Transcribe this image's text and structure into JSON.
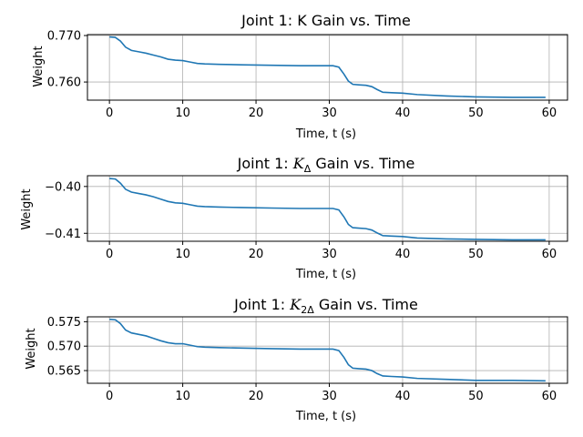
{
  "chart_data": [
    {
      "type": "line",
      "title": "Joint 1: K Gain vs. Time",
      "xlabel": "Time, t (s)",
      "ylabel": "Weight",
      "xlim": [
        -3,
        62.5
      ],
      "ylim": [
        0.7561,
        0.7702
      ],
      "xticks": [
        0,
        10,
        20,
        30,
        40,
        50,
        60
      ],
      "xtick_labels": [
        "0",
        "10",
        "20",
        "30",
        "40",
        "50",
        "60"
      ],
      "yticks": [
        0.76,
        0.77
      ],
      "ytick_labels": [
        "0.760",
        "0.770"
      ],
      "grid": true,
      "series": [
        {
          "color": "#1f77b4",
          "x": [
            0,
            0.8,
            1.5,
            2.2,
            3,
            4,
            5,
            6,
            7,
            8,
            9,
            10,
            11,
            12,
            13,
            15,
            18,
            22,
            26,
            29,
            30.5,
            31.3,
            32,
            32.6,
            33.2,
            34,
            35,
            35.8,
            36.5,
            37.3,
            38.5,
            40,
            42,
            46,
            50,
            55,
            59.5
          ],
          "y": [
            0.7697,
            0.7696,
            0.7688,
            0.7675,
            0.7668,
            0.7665,
            0.7662,
            0.7658,
            0.7654,
            0.7649,
            0.7647,
            0.7646,
            0.7643,
            0.764,
            0.7639,
            0.7638,
            0.7637,
            0.7636,
            0.7635,
            0.7635,
            0.7635,
            0.7632,
            0.7617,
            0.7602,
            0.7595,
            0.7594,
            0.7593,
            0.759,
            0.7584,
            0.7578,
            0.7577,
            0.7576,
            0.7573,
            0.757,
            0.7568,
            0.7567,
            0.7567
          ]
        }
      ]
    },
    {
      "type": "line",
      "title": "Joint 1: ",
      "title_symbol": "K",
      "title_subscript": "Δ",
      "title_suffix": " Gain vs. Time",
      "xlabel": "Time, t (s)",
      "ylabel": "Weight",
      "xlim": [
        -3,
        62.5
      ],
      "ylim": [
        -0.4117,
        -0.3977
      ],
      "xticks": [
        0,
        10,
        20,
        30,
        40,
        50,
        60
      ],
      "xtick_labels": [
        "0",
        "10",
        "20",
        "30",
        "40",
        "50",
        "60"
      ],
      "yticks": [
        -0.4,
        -0.41
      ],
      "ytick_labels": [
        "−0.40",
        "−0.41"
      ],
      "grid": true,
      "series": [
        {
          "color": "#1f77b4",
          "x": [
            0,
            0.8,
            1.5,
            2.2,
            3,
            4,
            5,
            6,
            7,
            8,
            9,
            10,
            11,
            12,
            13,
            15,
            18,
            22,
            26,
            29,
            30.5,
            31.3,
            32,
            32.6,
            33.2,
            34,
            35,
            35.8,
            36.5,
            37.3,
            38.5,
            40,
            42,
            46,
            50,
            55,
            59.5
          ],
          "y": [
            -0.3983,
            -0.3984,
            -0.3993,
            -0.4006,
            -0.4012,
            -0.4015,
            -0.4018,
            -0.4022,
            -0.4027,
            -0.4032,
            -0.4035,
            -0.4036,
            -0.4039,
            -0.4042,
            -0.4043,
            -0.4044,
            -0.4045,
            -0.4046,
            -0.4047,
            -0.4047,
            -0.4047,
            -0.405,
            -0.4065,
            -0.4081,
            -0.4088,
            -0.4089,
            -0.409,
            -0.4093,
            -0.4099,
            -0.4105,
            -0.4106,
            -0.4107,
            -0.411,
            -0.4112,
            -0.4113,
            -0.4114,
            -0.4114
          ]
        }
      ]
    },
    {
      "type": "line",
      "title": "Joint 1: ",
      "title_symbol": "K",
      "title_subscript": "2Δ",
      "title_suffix": " Gain vs. Time",
      "xlabel": "Time, t (s)",
      "ylabel": "Weight",
      "xlim": [
        -3,
        62.5
      ],
      "ylim": [
        0.5624,
        0.576
      ],
      "xticks": [
        0,
        10,
        20,
        30,
        40,
        50,
        60
      ],
      "xtick_labels": [
        "0",
        "10",
        "20",
        "30",
        "40",
        "50",
        "60"
      ],
      "yticks": [
        0.565,
        0.57,
        0.575
      ],
      "ytick_labels": [
        "0.565",
        "0.570",
        "0.575"
      ],
      "grid": true,
      "series": [
        {
          "color": "#1f77b4",
          "x": [
            0,
            0.8,
            1.5,
            2.2,
            3,
            4,
            5,
            6,
            7,
            8,
            9,
            10,
            11,
            12,
            13,
            15,
            18,
            22,
            26,
            29,
            30.5,
            31.3,
            32,
            32.6,
            33.2,
            34,
            35,
            35.8,
            36.5,
            37.3,
            38.5,
            40,
            42,
            46,
            50,
            55,
            59.5
          ],
          "y": [
            0.5755,
            0.5754,
            0.5746,
            0.5733,
            0.5727,
            0.5724,
            0.5721,
            0.5716,
            0.5711,
            0.5707,
            0.5705,
            0.5705,
            0.5702,
            0.5699,
            0.5698,
            0.5697,
            0.5696,
            0.5695,
            0.5694,
            0.5694,
            0.5694,
            0.5691,
            0.5677,
            0.5662,
            0.5655,
            0.5654,
            0.5653,
            0.565,
            0.5644,
            0.5639,
            0.5638,
            0.5637,
            0.5634,
            0.5632,
            0.563,
            0.563,
            0.5629
          ]
        }
      ]
    }
  ]
}
